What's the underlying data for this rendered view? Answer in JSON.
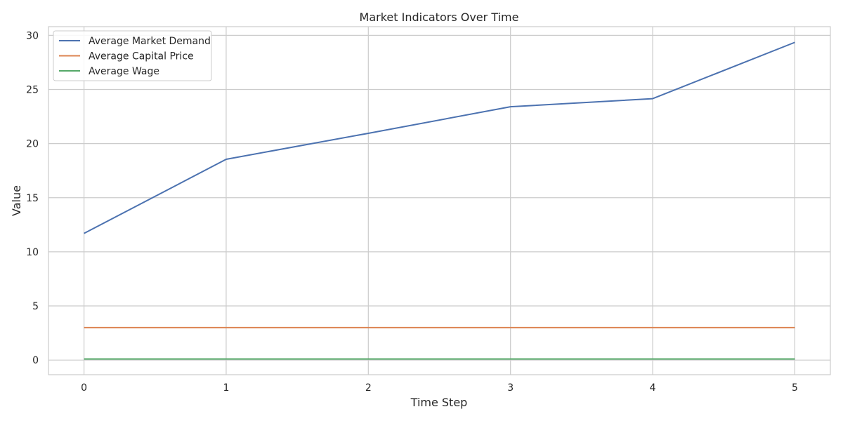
{
  "chart_data": {
    "type": "line",
    "title": "Market Indicators Over Time",
    "xlabel": "Time Step",
    "ylabel": "Value",
    "x": [
      0,
      1,
      2,
      3,
      4,
      5
    ],
    "xlim": [
      -0.25,
      5.25
    ],
    "ylim": [
      -1.35,
      30.8
    ],
    "xticks": [
      0,
      1,
      2,
      3,
      4,
      5
    ],
    "yticks": [
      0,
      5,
      10,
      15,
      20,
      25,
      30
    ],
    "grid": true,
    "legend_position": "top-left",
    "series": [
      {
        "name": "Average Market Demand",
        "color": "#4c72b0",
        "values": [
          11.7,
          18.55,
          20.95,
          23.4,
          24.15,
          29.35
        ]
      },
      {
        "name": "Average Capital Price",
        "color": "#dd8452",
        "values": [
          3.0,
          3.0,
          3.0,
          3.0,
          3.0,
          3.0
        ]
      },
      {
        "name": "Average Wage",
        "color": "#55a868",
        "values": [
          0.1,
          0.1,
          0.1,
          0.1,
          0.1,
          0.1
        ]
      }
    ]
  }
}
